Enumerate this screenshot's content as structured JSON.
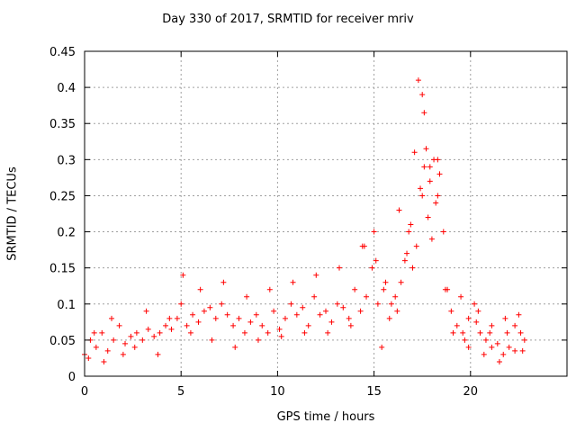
{
  "chart_data": {
    "type": "scatter",
    "title": "Day 330 of 2017, SRMTID for receiver mriv",
    "xlabel": "GPS time / hours",
    "ylabel": "SRMTID / TECUs",
    "xlim": [
      0,
      25
    ],
    "ylim": [
      0,
      0.45
    ],
    "grid": true,
    "marker": "+",
    "color": "#ff0000",
    "x_ticks": [
      0,
      5,
      10,
      15,
      20
    ],
    "x_tick_labels": [
      "0",
      "5",
      "10",
      "15",
      "20"
    ],
    "y_ticks": [
      0,
      0.05,
      0.1,
      0.15,
      0.2,
      0.25,
      0.3,
      0.35,
      0.4,
      0.45
    ],
    "y_tick_labels": [
      "0",
      "0.05",
      "0.1",
      "0.15",
      "0.2",
      "0.25",
      "0.3",
      "0.35",
      "0.4",
      "0.45"
    ],
    "series": [
      {
        "name": "SRMTID",
        "x": [
          0.0,
          0.3,
          0.6,
          0.9,
          1.2,
          1.5,
          1.8,
          2.1,
          2.4,
          2.7,
          3.0,
          3.3,
          3.6,
          3.9,
          4.2,
          4.5,
          4.8,
          5.0,
          5.3,
          5.6,
          5.9,
          6.2,
          6.5,
          6.8,
          7.1,
          7.4,
          7.7,
          8.0,
          8.3,
          8.6,
          8.9,
          9.2,
          9.5,
          9.8,
          10.1,
          10.4,
          10.7,
          11.0,
          11.3,
          11.6,
          11.9,
          12.2,
          12.5,
          12.8,
          13.1,
          13.4,
          13.7,
          14.0,
          14.3,
          14.6,
          14.9,
          15.2,
          15.5,
          15.8,
          16.1,
          16.4,
          16.6,
          16.8,
          17.0,
          17.2,
          17.4,
          17.6,
          17.8,
          18.0,
          18.2,
          18.4,
          18.6,
          18.8,
          19.0,
          19.3,
          19.6,
          19.9,
          20.2,
          20.5,
          20.8,
          21.1,
          21.4,
          21.7,
          22.0,
          22.3,
          22.6,
          22.8,
          0.2,
          0.5,
          1.0,
          1.4,
          2.0,
          2.6,
          3.2,
          3.8,
          4.4,
          5.1,
          5.5,
          6.0,
          6.6,
          7.2,
          7.8,
          8.4,
          9.0,
          9.6,
          10.2,
          10.8,
          11.4,
          12.0,
          12.6,
          13.2,
          13.8,
          14.4,
          15.0,
          15.4,
          15.9,
          16.3,
          16.7,
          17.1,
          17.5,
          17.9,
          18.3,
          18.7,
          19.1,
          19.5,
          19.9,
          20.3,
          20.7,
          21.1,
          21.5,
          21.9,
          22.3,
          22.7,
          17.3,
          17.5,
          17.6,
          17.7,
          17.9,
          18.1,
          18.3,
          14.5,
          15.1,
          15.6,
          16.2,
          16.9,
          19.7,
          20.4,
          21.0,
          21.8,
          22.5
        ],
        "y": [
          0.03,
          0.05,
          0.04,
          0.06,
          0.035,
          0.05,
          0.07,
          0.045,
          0.055,
          0.06,
          0.05,
          0.065,
          0.055,
          0.06,
          0.07,
          0.065,
          0.08,
          0.1,
          0.07,
          0.085,
          0.075,
          0.09,
          0.095,
          0.08,
          0.1,
          0.085,
          0.07,
          0.08,
          0.06,
          0.075,
          0.085,
          0.07,
          0.06,
          0.09,
          0.065,
          0.08,
          0.1,
          0.085,
          0.095,
          0.07,
          0.11,
          0.085,
          0.09,
          0.075,
          0.1,
          0.095,
          0.08,
          0.12,
          0.09,
          0.11,
          0.15,
          0.1,
          0.12,
          0.08,
          0.11,
          0.13,
          0.16,
          0.2,
          0.15,
          0.18,
          0.26,
          0.29,
          0.22,
          0.19,
          0.24,
          0.28,
          0.2,
          0.12,
          0.09,
          0.07,
          0.06,
          0.08,
          0.1,
          0.06,
          0.05,
          0.04,
          0.045,
          0.03,
          0.04,
          0.035,
          0.06,
          0.05,
          0.025,
          0.06,
          0.02,
          0.08,
          0.03,
          0.04,
          0.09,
          0.03,
          0.08,
          0.14,
          0.06,
          0.12,
          0.05,
          0.13,
          0.04,
          0.11,
          0.05,
          0.12,
          0.055,
          0.13,
          0.06,
          0.14,
          0.06,
          0.15,
          0.07,
          0.18,
          0.2,
          0.04,
          0.1,
          0.23,
          0.17,
          0.31,
          0.25,
          0.29,
          0.3,
          0.12,
          0.06,
          0.11,
          0.04,
          0.075,
          0.03,
          0.07,
          0.02,
          0.06,
          0.07,
          0.035,
          0.41,
          0.39,
          0.365,
          0.315,
          0.27,
          0.3,
          0.25,
          0.18,
          0.16,
          0.13,
          0.09,
          0.21,
          0.05,
          0.09,
          0.06,
          0.08,
          0.085
        ]
      }
    ]
  }
}
